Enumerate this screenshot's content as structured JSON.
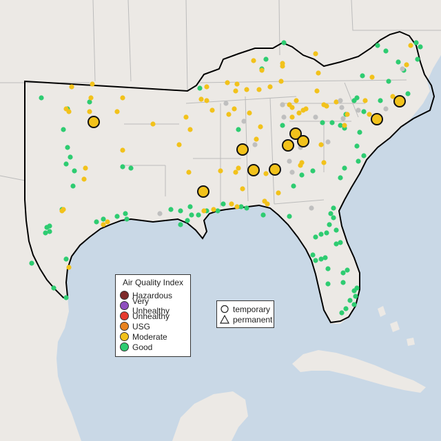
{
  "legend": {
    "title": "Air Quality Index",
    "items": [
      {
        "label": "Hazardous",
        "color": "#7e2a2a"
      },
      {
        "label": "Very Unhealthy",
        "color": "#8f4fbf"
      },
      {
        "label": "Unhealthy",
        "color": "#e63b2e"
      },
      {
        "label": "USG",
        "color": "#e8821e"
      },
      {
        "label": "Moderate",
        "color": "#f2c21b"
      },
      {
        "label": "Good",
        "color": "#2ecc71"
      }
    ],
    "shapes": [
      {
        "label": "temporary",
        "icon": "circle-icon"
      },
      {
        "label": "permanent",
        "icon": "triangle-icon"
      }
    ]
  },
  "colors": {
    "land": "#ece9e5",
    "water": "#c9d8e6",
    "border": "#bbbbbb",
    "region_outline": "#000000",
    "no_data": "#bfbfbf"
  }
}
